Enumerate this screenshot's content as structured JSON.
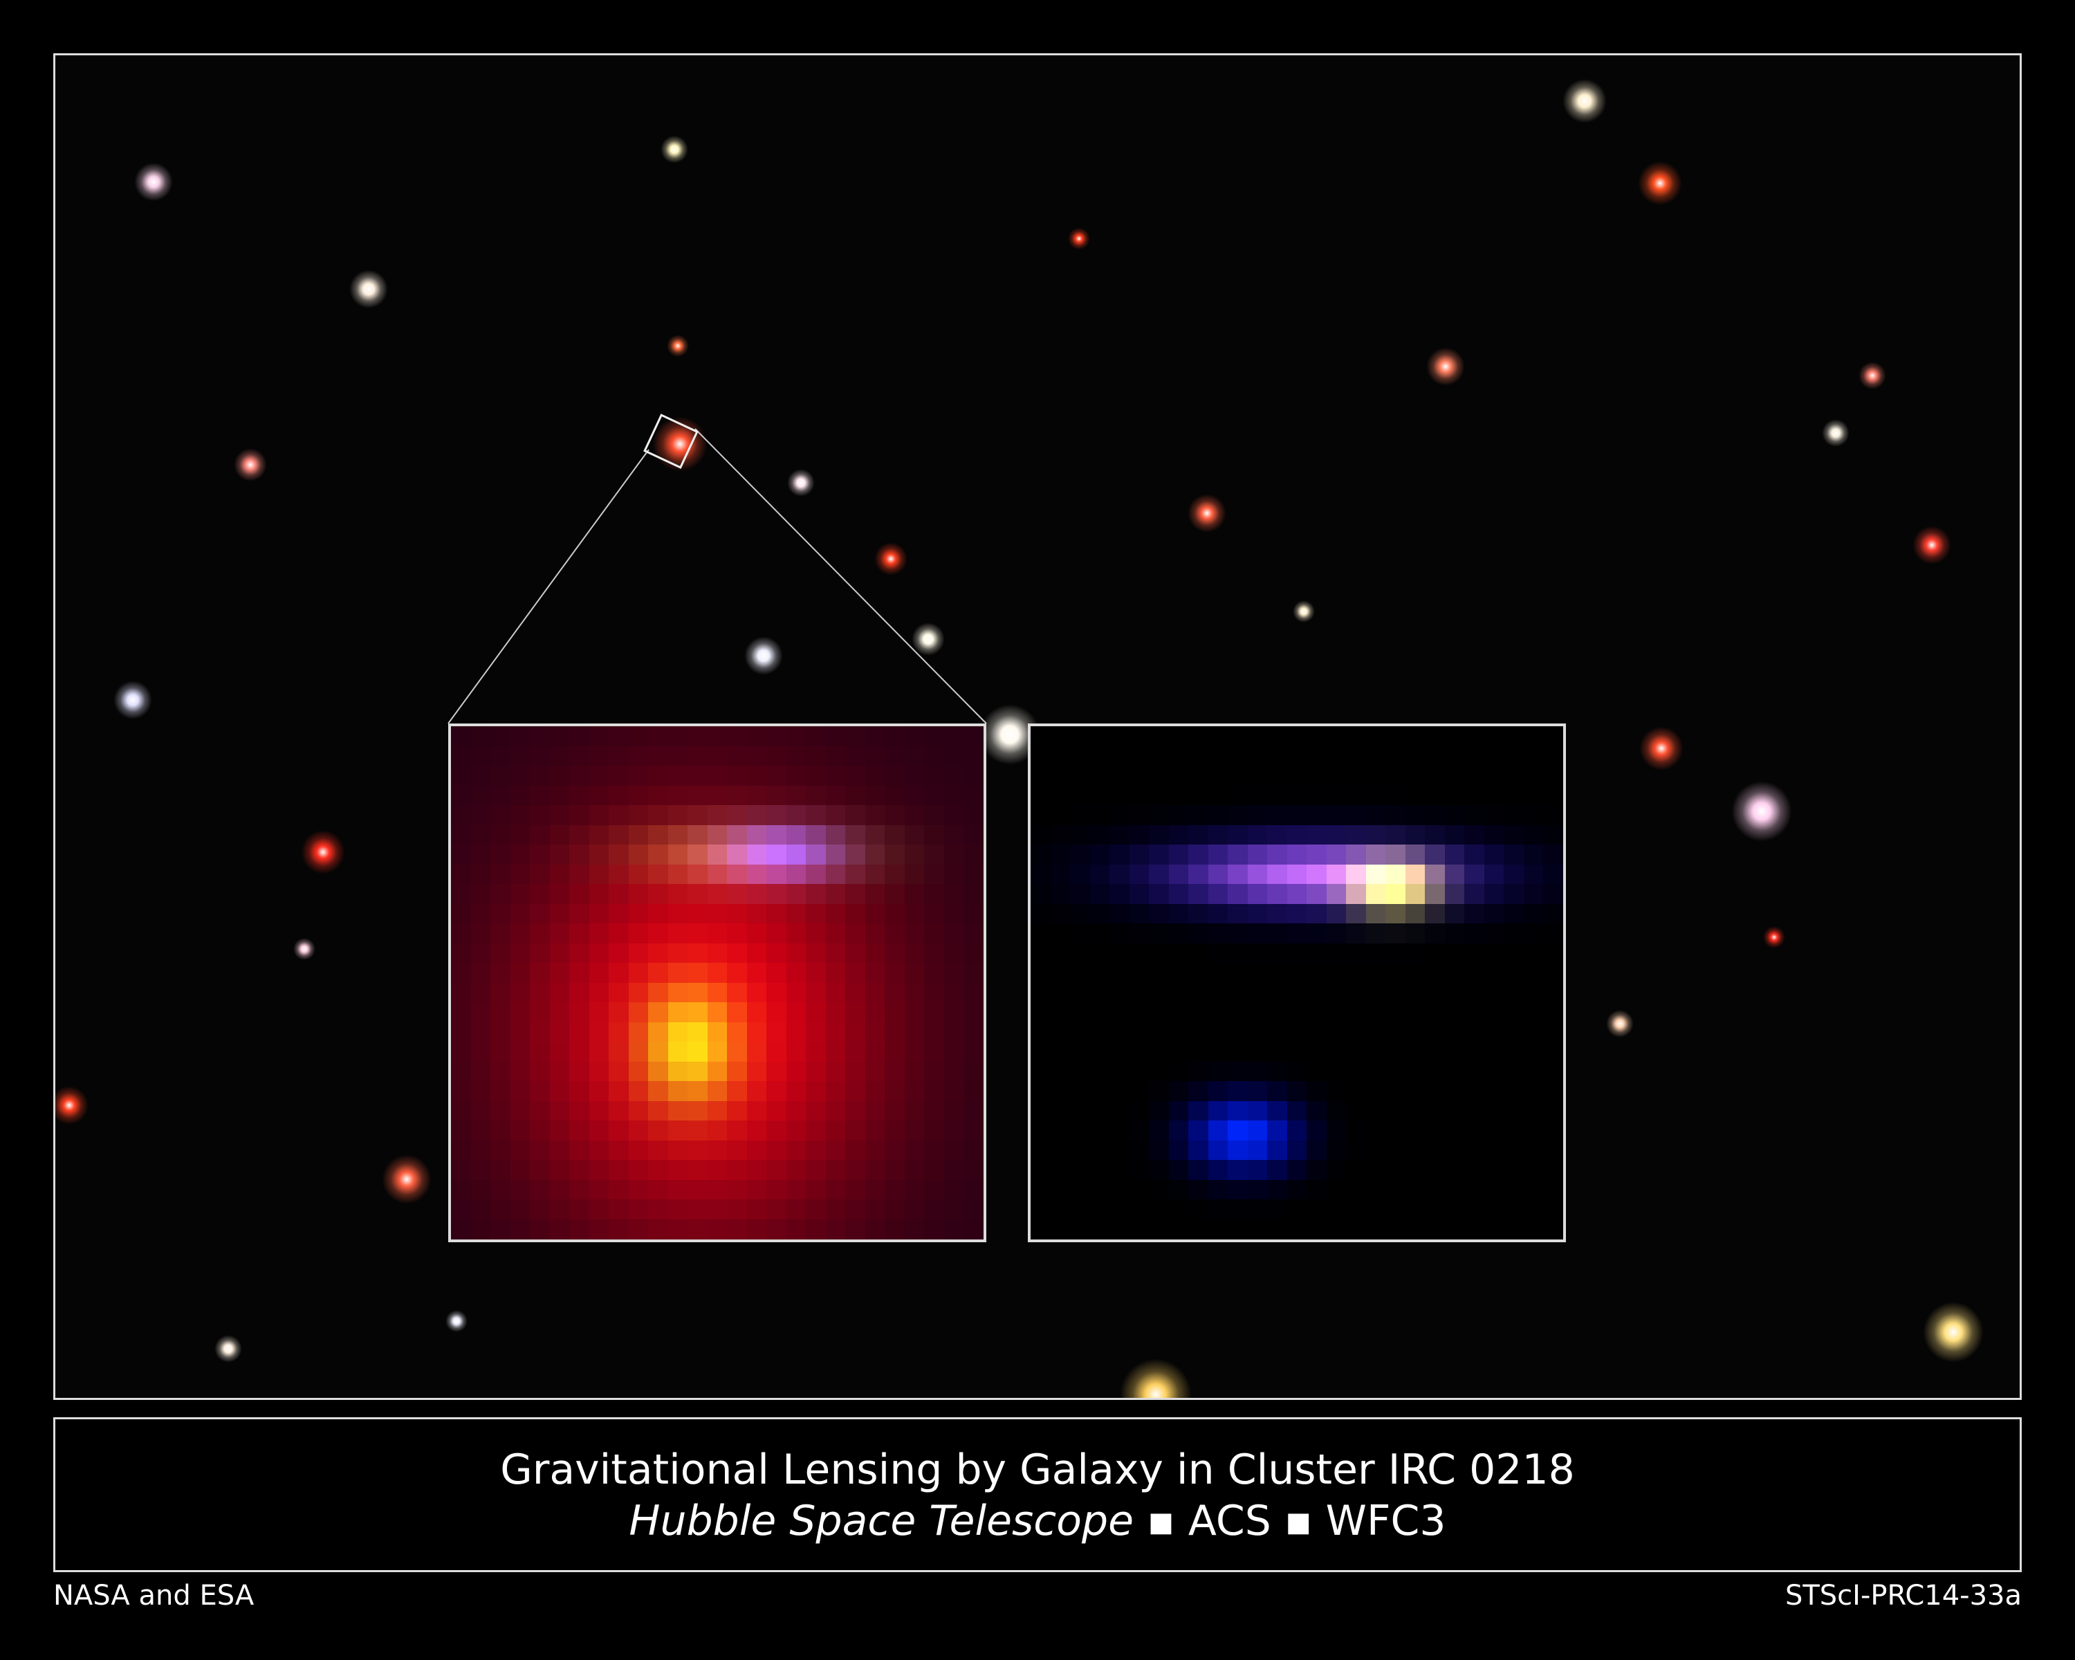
{
  "caption": {
    "title": "Gravitational Lensing by Galaxy in Cluster IRC 0218",
    "subtitle_italic": "Hubble Space Telescope",
    "separator": "▪",
    "instrument_1": "ACS",
    "instrument_2": "WFC3"
  },
  "credits": {
    "left": "NASA and ESA",
    "right": "STScI-PRC14-33a"
  },
  "colors": {
    "background": "#000000",
    "frame": "#dddddd"
  }
}
